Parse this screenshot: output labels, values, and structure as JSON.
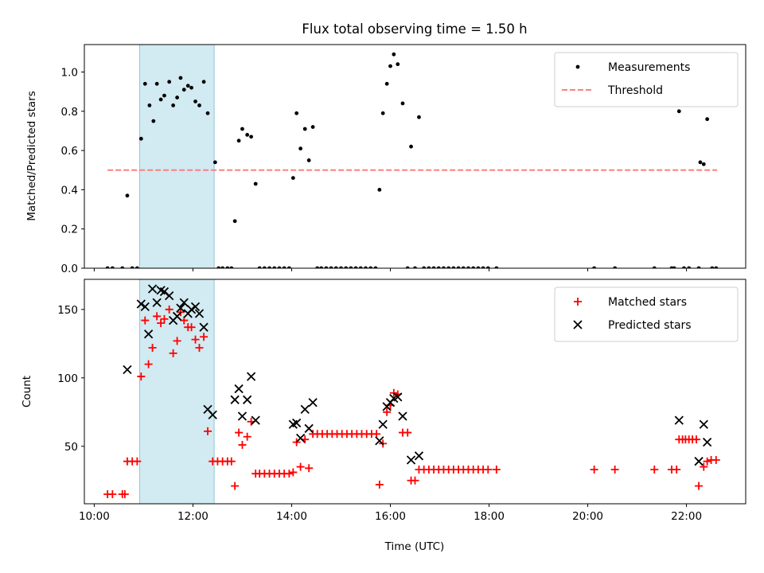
{
  "chart_data": [
    {
      "type": "scatter",
      "title": "Flux total observing time = 1.50 h",
      "xlabel": "",
      "ylabel": "Matched/Predicted stars",
      "xlim": [
        9.8,
        23.2
      ],
      "ylim": [
        0.0,
        1.14
      ],
      "yticks": [
        "0.0",
        "0.2",
        "0.4",
        "0.6",
        "0.8",
        "1.0"
      ],
      "shaded_region": {
        "x_start": 10.92,
        "x_end": 12.43,
        "color": "#add8e6"
      },
      "legend_position": "upper right",
      "series": [
        {
          "name": "Measurements",
          "marker": "dot",
          "color": "#000000",
          "points": [
            [
              10.27,
              0
            ],
            [
              10.37,
              0
            ],
            [
              10.57,
              0
            ],
            [
              10.67,
              0.37
            ],
            [
              10.77,
              0
            ],
            [
              10.87,
              0
            ],
            [
              10.95,
              0.66
            ],
            [
              11.03,
              0.94
            ],
            [
              11.12,
              0.83
            ],
            [
              11.2,
              0.75
            ],
            [
              11.27,
              0.94
            ],
            [
              11.35,
              0.86
            ],
            [
              11.42,
              0.88
            ],
            [
              11.52,
              0.95
            ],
            [
              11.6,
              0.83
            ],
            [
              11.68,
              0.87
            ],
            [
              11.75,
              0.97
            ],
            [
              11.82,
              0.91
            ],
            [
              11.9,
              0.93
            ],
            [
              11.97,
              0.92
            ],
            [
              12.05,
              0.85
            ],
            [
              12.13,
              0.83
            ],
            [
              12.22,
              0.95
            ],
            [
              12.3,
              0.79
            ],
            [
              12.45,
              0.54
            ],
            [
              12.52,
              0
            ],
            [
              12.6,
              0
            ],
            [
              12.7,
              0
            ],
            [
              12.78,
              0
            ],
            [
              12.85,
              0.24
            ],
            [
              12.93,
              0.65
            ],
            [
              13.0,
              0.71
            ],
            [
              13.1,
              0.68
            ],
            [
              13.18,
              0.67
            ],
            [
              13.27,
              0.43
            ],
            [
              13.35,
              0
            ],
            [
              13.45,
              0
            ],
            [
              13.55,
              0
            ],
            [
              13.65,
              0
            ],
            [
              13.75,
              0
            ],
            [
              13.85,
              0
            ],
            [
              13.95,
              0
            ],
            [
              14.03,
              0.46
            ],
            [
              14.1,
              0.79
            ],
            [
              14.18,
              0.61
            ],
            [
              14.27,
              0.71
            ],
            [
              14.35,
              0.55
            ],
            [
              14.43,
              0.72
            ],
            [
              14.52,
              0
            ],
            [
              14.6,
              0
            ],
            [
              14.7,
              0
            ],
            [
              14.8,
              0
            ],
            [
              14.9,
              0
            ],
            [
              15.0,
              0
            ],
            [
              15.1,
              0
            ],
            [
              15.2,
              0
            ],
            [
              15.3,
              0
            ],
            [
              15.4,
              0
            ],
            [
              15.5,
              0
            ],
            [
              15.6,
              0
            ],
            [
              15.7,
              0
            ],
            [
              15.78,
              0.4
            ],
            [
              15.85,
              0.79
            ],
            [
              15.93,
              0.94
            ],
            [
              16.0,
              1.03
            ],
            [
              16.07,
              1.09
            ],
            [
              16.15,
              1.04
            ],
            [
              16.25,
              0.84
            ],
            [
              16.35,
              0
            ],
            [
              16.42,
              0.62
            ],
            [
              16.5,
              0
            ],
            [
              16.58,
              0.77
            ],
            [
              16.68,
              0
            ],
            [
              16.78,
              0
            ],
            [
              16.88,
              0
            ],
            [
              16.98,
              0
            ],
            [
              17.08,
              0
            ],
            [
              17.18,
              0
            ],
            [
              17.28,
              0
            ],
            [
              17.38,
              0
            ],
            [
              17.48,
              0
            ],
            [
              17.58,
              0
            ],
            [
              17.68,
              0
            ],
            [
              17.78,
              0
            ],
            [
              17.88,
              0
            ],
            [
              17.98,
              0
            ],
            [
              18.15,
              0
            ],
            [
              20.13,
              0
            ],
            [
              20.55,
              0
            ],
            [
              21.35,
              0
            ],
            [
              21.7,
              0
            ],
            [
              21.75,
              0
            ],
            [
              21.85,
              0.8
            ],
            [
              21.95,
              0
            ],
            [
              22.05,
              0
            ],
            [
              22.25,
              0
            ],
            [
              22.28,
              0.54
            ],
            [
              22.35,
              0.53
            ],
            [
              22.42,
              0.76
            ],
            [
              22.52,
              0
            ],
            [
              22.6,
              0
            ]
          ]
        },
        {
          "name": "Threshold",
          "marker": "dashed-line",
          "color": "#ff7f7f",
          "points": [
            [
              10.27,
              0.5
            ],
            [
              22.62,
              0.5
            ]
          ]
        }
      ]
    },
    {
      "type": "scatter",
      "title": "",
      "xlabel": "Time (UTC)",
      "ylabel": "Count",
      "xlim": [
        9.8,
        23.2
      ],
      "ylim": [
        8,
        172
      ],
      "xticks": [
        "10:00",
        "12:00",
        "14:00",
        "16:00",
        "18:00",
        "20:00",
        "22:00"
      ],
      "yticks": [
        "50",
        "100",
        "150"
      ],
      "shaded_region": {
        "x_start": 10.92,
        "x_end": 12.43,
        "color": "#add8e6"
      },
      "legend_position": "upper right",
      "series": [
        {
          "name": "Matched stars",
          "marker": "plus",
          "color": "#ff0000",
          "points": [
            [
              10.27,
              15
            ],
            [
              10.37,
              15
            ],
            [
              10.57,
              15
            ],
            [
              10.62,
              15
            ],
            [
              10.67,
              39
            ],
            [
              10.77,
              39
            ],
            [
              10.87,
              39
            ],
            [
              10.95,
              101
            ],
            [
              11.03,
              142
            ],
            [
              11.1,
              110
            ],
            [
              11.18,
              122
            ],
            [
              11.27,
              145
            ],
            [
              11.35,
              140
            ],
            [
              11.42,
              143
            ],
            [
              11.52,
              150
            ],
            [
              11.6,
              118
            ],
            [
              11.68,
              127
            ],
            [
              11.75,
              148
            ],
            [
              11.82,
              142
            ],
            [
              11.9,
              137
            ],
            [
              11.97,
              137
            ],
            [
              12.05,
              128
            ],
            [
              12.13,
              122
            ],
            [
              12.22,
              130
            ],
            [
              12.3,
              61
            ],
            [
              12.4,
              39
            ],
            [
              12.5,
              39
            ],
            [
              12.6,
              39
            ],
            [
              12.7,
              39
            ],
            [
              12.78,
              39
            ],
            [
              12.85,
              21
            ],
            [
              12.93,
              60
            ],
            [
              13.0,
              51
            ],
            [
              13.1,
              57
            ],
            [
              13.18,
              68
            ],
            [
              13.27,
              30
            ],
            [
              13.35,
              30
            ],
            [
              13.45,
              30
            ],
            [
              13.55,
              30
            ],
            [
              13.65,
              30
            ],
            [
              13.75,
              30
            ],
            [
              13.85,
              30
            ],
            [
              13.95,
              30
            ],
            [
              14.03,
              31
            ],
            [
              14.1,
              53
            ],
            [
              14.18,
              35
            ],
            [
              14.27,
              55
            ],
            [
              14.35,
              34
            ],
            [
              14.43,
              59
            ],
            [
              14.52,
              59
            ],
            [
              14.62,
              59
            ],
            [
              14.72,
              59
            ],
            [
              14.82,
              59
            ],
            [
              14.92,
              59
            ],
            [
              15.02,
              59
            ],
            [
              15.12,
              59
            ],
            [
              15.22,
              59
            ],
            [
              15.32,
              59
            ],
            [
              15.42,
              59
            ],
            [
              15.52,
              59
            ],
            [
              15.62,
              59
            ],
            [
              15.72,
              59
            ],
            [
              15.78,
              22
            ],
            [
              15.85,
              52
            ],
            [
              15.93,
              75
            ],
            [
              16.0,
              80
            ],
            [
              16.07,
              89
            ],
            [
              16.15,
              88
            ],
            [
              16.25,
              60
            ],
            [
              16.35,
              60
            ],
            [
              16.42,
              25
            ],
            [
              16.5,
              25
            ],
            [
              16.58,
              33
            ],
            [
              16.68,
              33
            ],
            [
              16.78,
              33
            ],
            [
              16.88,
              33
            ],
            [
              16.98,
              33
            ],
            [
              17.08,
              33
            ],
            [
              17.18,
              33
            ],
            [
              17.28,
              33
            ],
            [
              17.38,
              33
            ],
            [
              17.48,
              33
            ],
            [
              17.58,
              33
            ],
            [
              17.68,
              33
            ],
            [
              17.78,
              33
            ],
            [
              17.88,
              33
            ],
            [
              17.98,
              33
            ],
            [
              18.15,
              33
            ],
            [
              20.13,
              33
            ],
            [
              20.55,
              33
            ],
            [
              21.35,
              33
            ],
            [
              21.7,
              33
            ],
            [
              21.8,
              33
            ],
            [
              21.85,
              55
            ],
            [
              21.92,
              55
            ],
            [
              21.98,
              55
            ],
            [
              22.05,
              55
            ],
            [
              22.12,
              55
            ],
            [
              22.2,
              55
            ],
            [
              22.25,
              21
            ],
            [
              22.35,
              35
            ],
            [
              22.42,
              39
            ],
            [
              22.5,
              40
            ],
            [
              22.6,
              40
            ]
          ]
        },
        {
          "name": "Predicted stars",
          "marker": "x",
          "color": "#000000",
          "points": [
            [
              10.67,
              106
            ],
            [
              10.95,
              154
            ],
            [
              11.03,
              152
            ],
            [
              11.1,
              132
            ],
            [
              11.18,
              165
            ],
            [
              11.27,
              155
            ],
            [
              11.35,
              164
            ],
            [
              11.42,
              163
            ],
            [
              11.52,
              160
            ],
            [
              11.6,
              142
            ],
            [
              11.68,
              145
            ],
            [
              11.75,
              151
            ],
            [
              11.82,
              155
            ],
            [
              11.9,
              147
            ],
            [
              11.97,
              150
            ],
            [
              12.05,
              152
            ],
            [
              12.13,
              147
            ],
            [
              12.22,
              137
            ],
            [
              12.3,
              77
            ],
            [
              12.4,
              73
            ],
            [
              12.85,
              84
            ],
            [
              12.93,
              92
            ],
            [
              13.0,
              72
            ],
            [
              13.1,
              84
            ],
            [
              13.18,
              101
            ],
            [
              13.27,
              69
            ],
            [
              14.03,
              66
            ],
            [
              14.1,
              67
            ],
            [
              14.18,
              56
            ],
            [
              14.27,
              77
            ],
            [
              14.35,
              63
            ],
            [
              14.43,
              82
            ],
            [
              15.78,
              54
            ],
            [
              15.85,
              66
            ],
            [
              15.93,
              79
            ],
            [
              16.0,
              82
            ],
            [
              16.07,
              85
            ],
            [
              16.15,
              86
            ],
            [
              16.25,
              72
            ],
            [
              16.42,
              40
            ],
            [
              16.58,
              43
            ],
            [
              21.85,
              69
            ],
            [
              22.25,
              39
            ],
            [
              22.35,
              66
            ],
            [
              22.42,
              53
            ]
          ]
        }
      ]
    }
  ]
}
